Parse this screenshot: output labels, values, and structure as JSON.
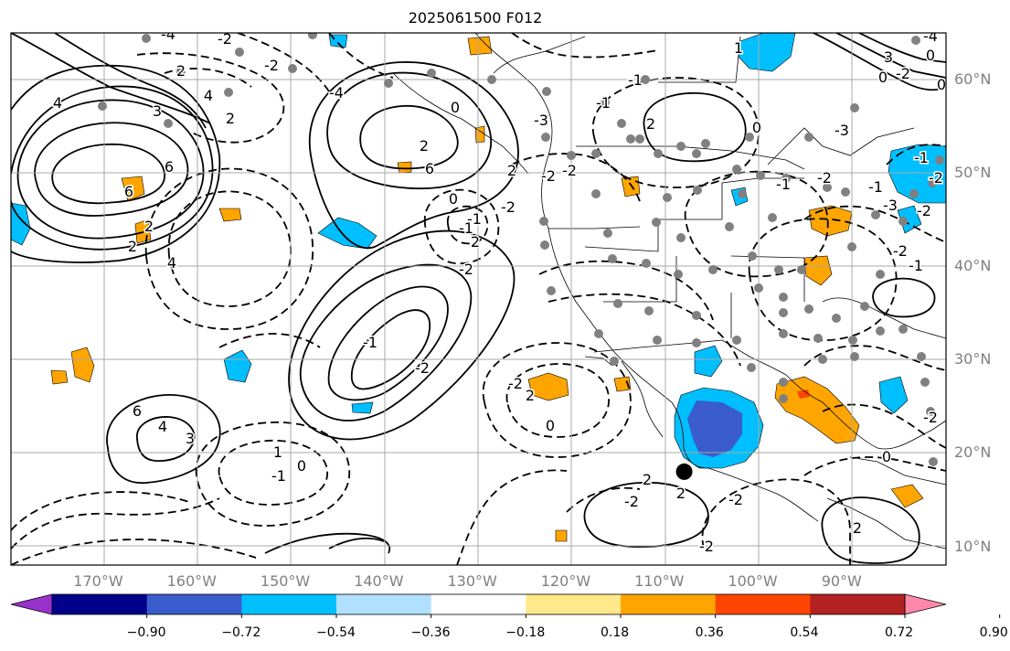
{
  "title": "2025061500 F012",
  "map": {
    "projection": "PlateCarree",
    "lon_range": [
      -180,
      -80
    ],
    "lat_range": [
      8,
      65
    ],
    "lon_ticks": [
      "170°W",
      "160°W",
      "150°W",
      "140°W",
      "130°W",
      "120°W",
      "110°W",
      "100°W",
      "90°W"
    ],
    "lat_ticks": [
      "60°N",
      "50°N",
      "40°N",
      "30°N",
      "20°N",
      "10°N"
    ],
    "grid": true,
    "marker": {
      "lon": -108,
      "lat": 18,
      "color": "#000000"
    }
  },
  "colorbar": {
    "orientation": "horizontal",
    "extend": "both",
    "colors": [
      "#9932cc",
      "#00008b",
      "#3a5ccc",
      "#00bfff",
      "#b2e0ff",
      "#ffffff",
      "#ffe98a",
      "#ffa500",
      "#ff4500",
      "#b22222",
      "#ff88aa"
    ],
    "tick_labels": [
      "−0.90",
      "−0.72",
      "−0.54",
      "−0.36",
      "−0.18",
      "0.18",
      "0.36",
      "0.54",
      "0.72",
      "0.90"
    ]
  },
  "contour_labels": [
    "4",
    "2",
    "6",
    "6",
    "4",
    "2",
    "3",
    "2",
    "2",
    "-4",
    "-2",
    "4",
    "2",
    "6",
    "0",
    "-2",
    "-1",
    "2",
    "-2",
    "-1",
    "-4",
    "-2",
    "0",
    "-3",
    "-2",
    "-1",
    "2",
    "-1",
    "-2",
    "0",
    "-2",
    "2",
    "3",
    "4",
    "6",
    "-1",
    "0",
    "1",
    "2",
    "-2",
    "2",
    "2",
    "-2",
    "-2",
    "-2",
    "-1",
    "0",
    "-1",
    "1",
    "0",
    "2",
    "-2",
    "0",
    "3",
    "0",
    "-4",
    "0",
    "-2",
    "-3",
    "-1",
    "-2",
    "-2",
    "-1",
    "-2",
    "-3",
    "-2",
    "-1"
  ]
}
